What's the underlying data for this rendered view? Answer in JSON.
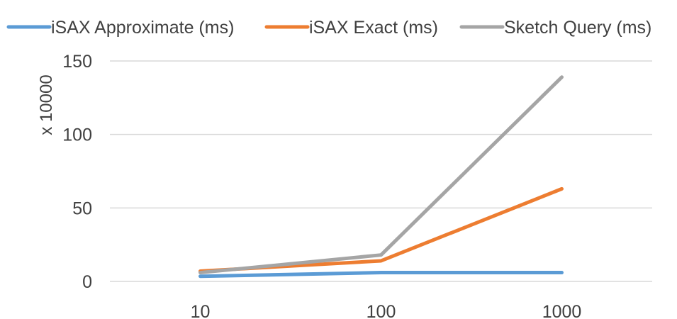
{
  "chart_data": {
    "type": "line",
    "categories": [
      "10",
      "100",
      "1000"
    ],
    "series": [
      {
        "name": "iSAX Approximate (ms)",
        "values": [
          3.5,
          6,
          6
        ],
        "color": "#5B9BD5"
      },
      {
        "name": "iSAX Exact (ms)",
        "values": [
          7,
          14,
          63
        ],
        "color": "#ED7D31"
      },
      {
        "name": "Sketch Query  (ms)",
        "values": [
          6,
          18,
          139
        ],
        "color": "#A5A5A5"
      }
    ],
    "ylabel": "x 10000",
    "ylim": [
      0,
      150
    ],
    "yticks": [
      0,
      50,
      100,
      150
    ],
    "grid": true,
    "legend": "top"
  }
}
